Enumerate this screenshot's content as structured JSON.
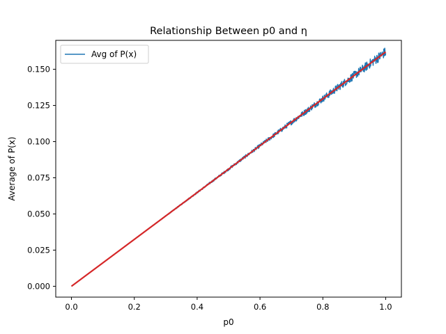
{
  "chart_data": {
    "type": "line",
    "title": "Relationship Between p0 and η",
    "xlabel": "p0",
    "ylabel": "Average of P(x)",
    "xlim": [
      -0.05,
      1.05
    ],
    "ylim": [
      -0.0075,
      0.17
    ],
    "xticks": [
      "0.0",
      "0.2",
      "0.4",
      "0.6",
      "0.8",
      "1.0"
    ],
    "yticks": [
      "0.000",
      "0.025",
      "0.050",
      "0.075",
      "0.100",
      "0.125",
      "0.150"
    ],
    "grid": false,
    "legend": {
      "position": "top-left",
      "entries": [
        "Avg of P(x)"
      ]
    },
    "series": [
      {
        "name": "Avg of P(x)",
        "color": "#1f77b4",
        "style": "noisy",
        "x": [
          0.0,
          0.1,
          0.2,
          0.3,
          0.4,
          0.5,
          0.6,
          0.7,
          0.8,
          0.9,
          1.0
        ],
        "y": [
          0.0,
          0.0162,
          0.0324,
          0.0486,
          0.0648,
          0.081,
          0.0972,
          0.1134,
          0.1296,
          0.1458,
          0.162
        ]
      },
      {
        "color": "#d62728",
        "style": "fit",
        "x": [
          0.0,
          1.0
        ],
        "y": [
          0.0,
          0.162
        ]
      }
    ]
  }
}
